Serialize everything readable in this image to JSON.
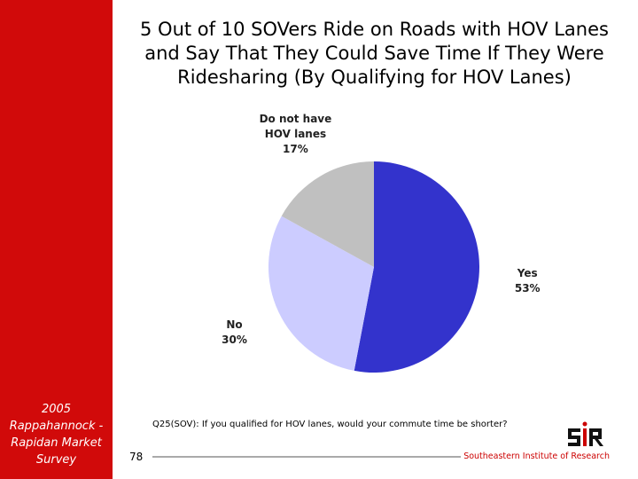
{
  "sidebar": "2005 Rappahannock - Rapidan Market Survey",
  "footnote": "Q25(SOV): If you qualified for HOV lanes, would your commute time be shorter?",
  "page_number": "78",
  "organization": "Southeastern Institute of Research",
  "chart_data": {
    "type": "pie",
    "title": "5 Out of 10 SOVers Ride on Roads with HOV Lanes and Say That They Could Save Time If They Were Ridesharing (By Qualifying for HOV Lanes)",
    "categories": [
      "Yes",
      "No",
      "Do not have HOV lanes"
    ],
    "values": [
      53,
      30,
      17
    ],
    "value_labels": [
      "53%",
      "30%",
      "17%"
    ],
    "colors": [
      "#3333cc",
      "#ccccff",
      "#c0c0c0"
    ]
  }
}
